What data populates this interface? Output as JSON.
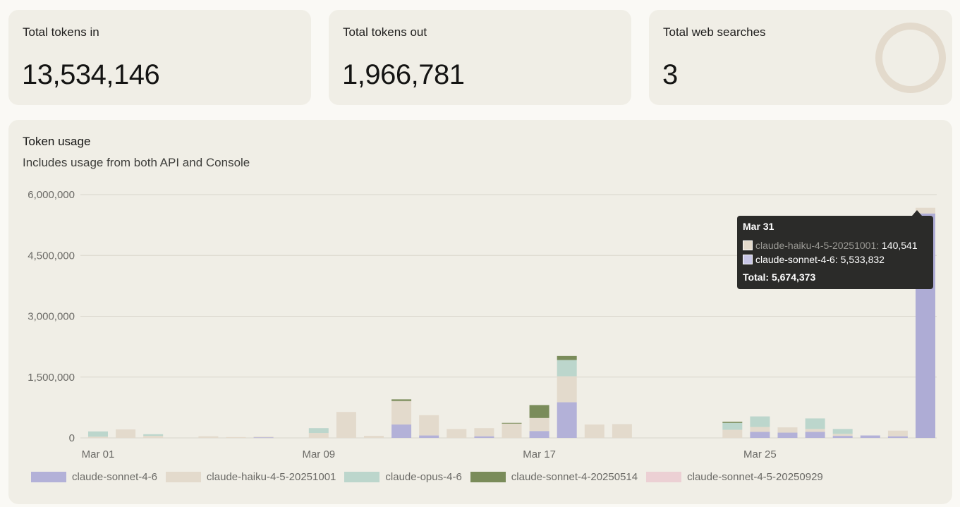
{
  "stats": {
    "tokens_in": {
      "label": "Total tokens in",
      "value": "13,534,146"
    },
    "tokens_out": {
      "label": "Total tokens out",
      "value": "1,966,781"
    },
    "web_searches": {
      "label": "Total web searches",
      "value": "3"
    }
  },
  "colors": {
    "claude-sonnet-4-6": "#b3b1d8",
    "claude-haiku-4-5-20251001": "#e3dacc",
    "claude-opus-4-6": "#bcd6cc",
    "claude-sonnet-4-20250514": "#7a8c5a",
    "claude-sonnet-4-5-20250929": "#ecd0d4"
  },
  "tooltip": {
    "date": "Mar 31",
    "rows": [
      {
        "name": "claude-haiku-4-5-20251001",
        "value": "140,541",
        "color": "#e3dacc",
        "dim": true
      },
      {
        "name": "claude-sonnet-4-6",
        "value": "5,533,832",
        "color": "#c8c6e6",
        "dim": false
      }
    ],
    "total_label": "Total: 5,674,373"
  },
  "chart_data": {
    "type": "bar",
    "stacked": true,
    "title": "Token usage",
    "subtitle": "Includes usage from both API and Console",
    "ylim": [
      0,
      6000000
    ],
    "y_ticks": [
      0,
      1500000,
      3000000,
      4500000,
      6000000
    ],
    "y_tick_labels": [
      "0",
      "1,500,000",
      "3,000,000",
      "4,500,000",
      "6,000,000"
    ],
    "x_tick_labels": [
      {
        "day": 0,
        "label": "Mar 01"
      },
      {
        "day": 8,
        "label": "Mar 09"
      },
      {
        "day": 16,
        "label": "Mar 17"
      },
      {
        "day": 24,
        "label": "Mar 25"
      }
    ],
    "categories": [
      "Mar 01",
      "Mar 02",
      "Mar 03",
      "Mar 04",
      "Mar 05",
      "Mar 06",
      "Mar 07",
      "Mar 08",
      "Mar 09",
      "Mar 10",
      "Mar 11",
      "Mar 12",
      "Mar 13",
      "Mar 14",
      "Mar 15",
      "Mar 16",
      "Mar 17",
      "Mar 18",
      "Mar 19",
      "Mar 20",
      "Mar 21",
      "Mar 22",
      "Mar 23",
      "Mar 24",
      "Mar 25",
      "Mar 26",
      "Mar 27",
      "Mar 28",
      "Mar 29",
      "Mar 30",
      "Mar 31"
    ],
    "series": [
      {
        "name": "claude-sonnet-4-6",
        "values": [
          0,
          0,
          0,
          0,
          0,
          0,
          15000,
          0,
          0,
          0,
          0,
          330000,
          60000,
          0,
          40000,
          0,
          170000,
          880000,
          0,
          0,
          0,
          0,
          0,
          0,
          150000,
          130000,
          150000,
          50000,
          60000,
          40000,
          5533832
        ]
      },
      {
        "name": "claude-haiku-4-5-20251001",
        "values": [
          30000,
          210000,
          50000,
          0,
          40000,
          20000,
          15000,
          0,
          120000,
          640000,
          50000,
          580000,
          500000,
          220000,
          200000,
          360000,
          320000,
          640000,
          330000,
          340000,
          0,
          0,
          0,
          200000,
          120000,
          130000,
          70000,
          50000,
          0,
          140000,
          140541
        ]
      },
      {
        "name": "claude-opus-4-6",
        "values": [
          130000,
          0,
          40000,
          0,
          0,
          0,
          0,
          0,
          120000,
          0,
          0,
          0,
          0,
          0,
          0,
          0,
          0,
          400000,
          0,
          0,
          0,
          0,
          0,
          170000,
          260000,
          0,
          260000,
          120000,
          0,
          0,
          0
        ]
      },
      {
        "name": "claude-sonnet-4-20250514",
        "values": [
          0,
          0,
          0,
          0,
          0,
          0,
          0,
          0,
          0,
          0,
          0,
          40000,
          0,
          0,
          0,
          10000,
          320000,
          100000,
          0,
          0,
          0,
          0,
          0,
          30000,
          0,
          0,
          0,
          0,
          0,
          0,
          0
        ]
      },
      {
        "name": "claude-sonnet-4-5-20250929",
        "values": [
          0,
          0,
          0,
          0,
          0,
          0,
          0,
          0,
          0,
          0,
          0,
          0,
          0,
          0,
          0,
          0,
          0,
          0,
          0,
          0,
          0,
          0,
          0,
          0,
          0,
          0,
          0,
          0,
          0,
          0,
          0
        ]
      }
    ],
    "legend": [
      "claude-sonnet-4-6",
      "claude-haiku-4-5-20251001",
      "claude-opus-4-6",
      "claude-sonnet-4-20250514",
      "claude-sonnet-4-5-20250929"
    ],
    "legend_position": "bottom-left"
  }
}
